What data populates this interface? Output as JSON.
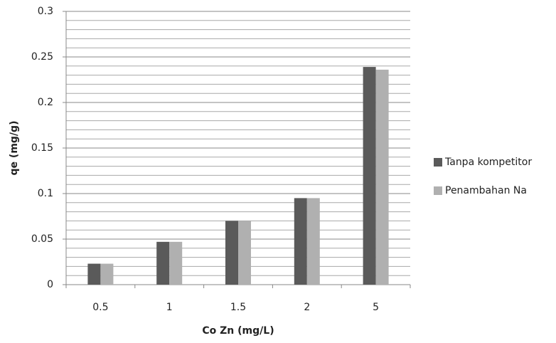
{
  "chart_data": {
    "type": "bar",
    "x_label": "Co Zn (mg/L)",
    "y_label": "qe (mg/g)",
    "categories": [
      "0.5",
      "1",
      "1.5",
      "2",
      "5"
    ],
    "series": [
      {
        "name": "Tanpa kompetitor",
        "color": "#5a5a5a",
        "values": [
          0.023,
          0.047,
          0.07,
          0.095,
          0.239
        ]
      },
      {
        "name": "Penambahan Na",
        "color": "#b0b0b0",
        "values": [
          0.023,
          0.047,
          0.07,
          0.095,
          0.236
        ]
      }
    ],
    "ylim": [
      0,
      0.3
    ],
    "yticks": [
      0,
      0.05,
      0.1,
      0.15,
      0.2,
      0.25,
      0.3
    ],
    "y_minor_grid": [
      0.01,
      0.02,
      0.03,
      0.04,
      0.06,
      0.07,
      0.08,
      0.09,
      0.11,
      0.12,
      0.13,
      0.14,
      0.16,
      0.17,
      0.18,
      0.19,
      0.21,
      0.22,
      0.23,
      0.24,
      0.26,
      0.27,
      0.28,
      0.29
    ],
    "grid": true,
    "legend": "right"
  }
}
